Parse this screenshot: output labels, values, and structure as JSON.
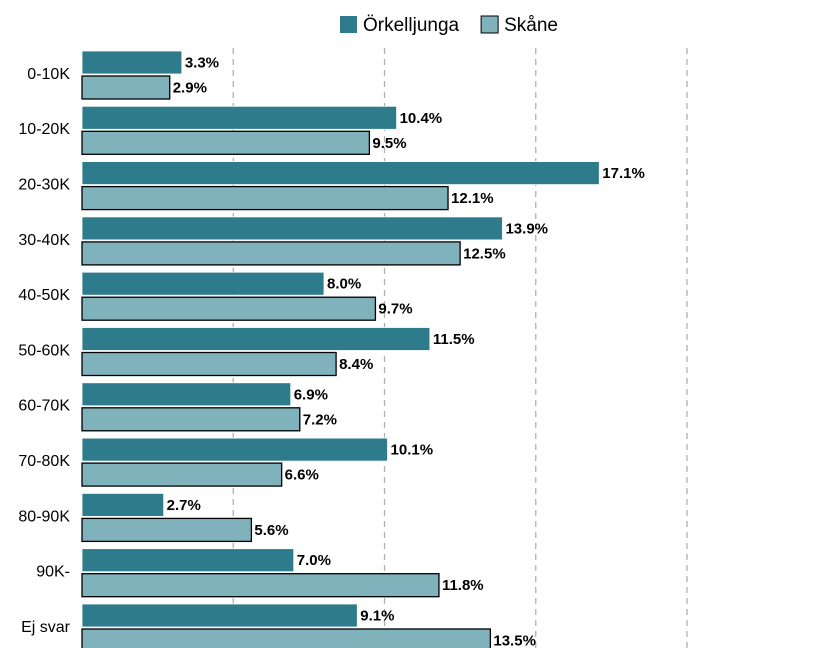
{
  "chart_data": {
    "type": "bar",
    "orientation": "horizontal",
    "categories": [
      "0-10K",
      "10-20K",
      "20-30K",
      "30-40K",
      "40-50K",
      "50-60K",
      "60-70K",
      "70-80K",
      "80-90K",
      "90K-",
      "Ej svar"
    ],
    "series": [
      {
        "name": "Örkelljunga",
        "color": "#2e7b8c",
        "values": [
          3.3,
          10.4,
          17.1,
          13.9,
          8.0,
          11.5,
          6.9,
          10.1,
          2.7,
          7.0,
          9.1
        ],
        "value_labels": [
          "3.3%",
          "10.4%",
          "17.1%",
          "13.9%",
          "8.0%",
          "11.5%",
          "6.9%",
          "10.1%",
          "2.7%",
          "7.0%",
          "9.1%"
        ]
      },
      {
        "name": "Skåne",
        "color": "#7fb2bb",
        "values": [
          2.9,
          9.5,
          12.1,
          12.5,
          9.7,
          8.4,
          7.2,
          6.6,
          5.6,
          11.8,
          13.5
        ],
        "value_labels": [
          "2.9%",
          "9.5%",
          "12.1%",
          "12.5%",
          "9.7%",
          "8.4%",
          "7.2%",
          "6.6%",
          "5.6%",
          "11.8%",
          "13.5%"
        ]
      }
    ],
    "xlim": [
      0,
      24
    ],
    "xticks": [
      5,
      10,
      15,
      20
    ],
    "grid": true,
    "legend": "top"
  }
}
